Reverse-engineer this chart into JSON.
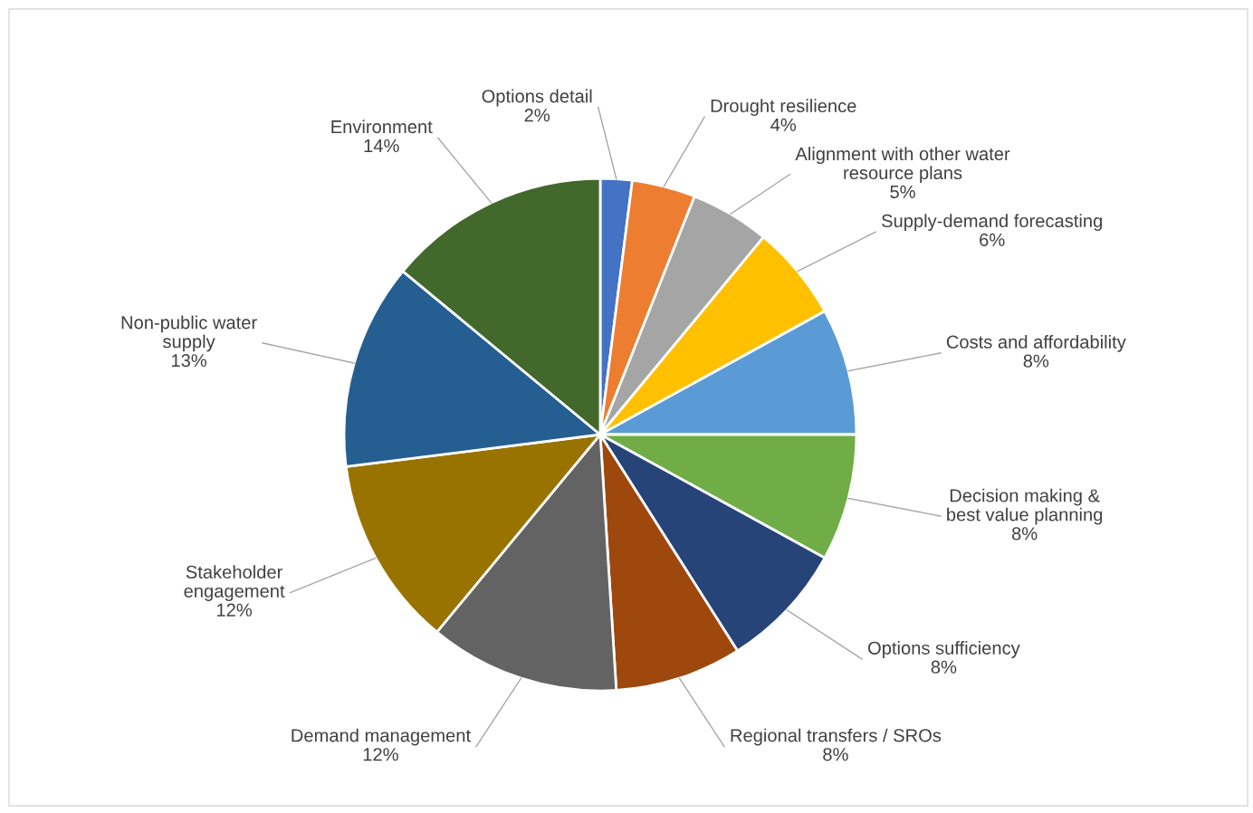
{
  "chart_data": {
    "type": "pie",
    "categories": [
      "Options detail",
      "Drought resilience",
      "Alignment with other water\nresource plans",
      "Supply-demand forecasting",
      "Costs and affordability",
      "Decision making &\nbest value planning",
      "Options sufficiency",
      "Regional transfers / SROs",
      "Demand management",
      "Stakeholder\nengagement",
      "Non-public water\nsupply",
      "Environment"
    ],
    "values": [
      2,
      4,
      5,
      6,
      8,
      8,
      8,
      8,
      12,
      12,
      13,
      14
    ],
    "value_labels": [
      "2%",
      "4%",
      "5%",
      "6%",
      "8%",
      "8%",
      "8%",
      "8%",
      "12%",
      "12%",
      "13%",
      "14%"
    ],
    "colors": [
      "#4472c4",
      "#ed7d31",
      "#a5a5a5",
      "#ffc000",
      "#5b9bd5",
      "#70ad47",
      "#264478",
      "#9e480e",
      "#636363",
      "#997300",
      "#255e91",
      "#43682b"
    ]
  }
}
